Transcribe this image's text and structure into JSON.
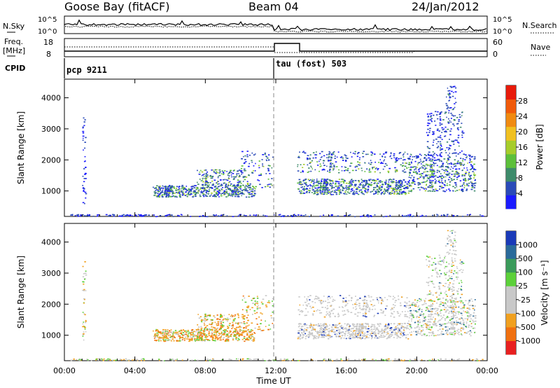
{
  "header": {
    "station": "Goose Bay (fitACF)",
    "beam": "Beam 04",
    "date": "24/Jan/2012"
  },
  "strip1": {
    "left_label": "N.Sky",
    "right_label": "N.Search",
    "left_ticks": [
      "10^5",
      "10^0"
    ],
    "right_ticks": [
      "10^5",
      "10^0"
    ]
  },
  "strip2": {
    "left_label_line1": "Freq.",
    "left_label_line2": "[MHz]",
    "right_label": "Nave",
    "left_ticks": [
      "18",
      "8"
    ],
    "right_ticks": [
      "60",
      "0"
    ]
  },
  "cpid": {
    "label": "CPID",
    "segments": [
      {
        "name": "pcp 9211",
        "start": "00:00"
      },
      {
        "name": "tau (fost) 503",
        "start": "12:00"
      }
    ]
  },
  "chart_data": [
    {
      "type": "heatmap",
      "name": "power_panel",
      "ylabel": "Slant Range [km]",
      "y_ticks": [
        1000,
        2000,
        3000,
        4000
      ],
      "ylim": [
        180,
        4600
      ],
      "colorbar": {
        "title": "Power [dB]",
        "levels": [
          "4",
          "8",
          "12",
          "16",
          "20",
          "24",
          "28"
        ],
        "colors": [
          "#1a1aff",
          "#2a4ab8",
          "#3d8a6a",
          "#5cbf3a",
          "#a6cc2a",
          "#f0c020",
          "#f08a10",
          "#f05a0a",
          "#e81a0a"
        ]
      }
    },
    {
      "type": "heatmap",
      "name": "velocity_panel",
      "ylabel": "Slant Range [km]",
      "y_ticks": [
        1000,
        2000,
        3000,
        4000
      ],
      "ylim": [
        180,
        4600
      ],
      "colorbar": {
        "title": "Velocity [m s⁻¹]",
        "levels": [
          "1000",
          "500",
          "100",
          "25",
          "-25",
          "-100",
          "-500",
          "-1000"
        ],
        "colors": [
          "#1a3ab8",
          "#2a6a9a",
          "#3a9a5a",
          "#5cd03a",
          "#c8c8c8",
          "#c8c8c8",
          "#f0a020",
          "#f07010",
          "#e82020"
        ]
      }
    }
  ],
  "x_axis": {
    "label": "Time UT",
    "ticks": [
      "00:00",
      "04:00",
      "08:00",
      "12:00",
      "16:00",
      "20:00",
      "00:00"
    ]
  }
}
